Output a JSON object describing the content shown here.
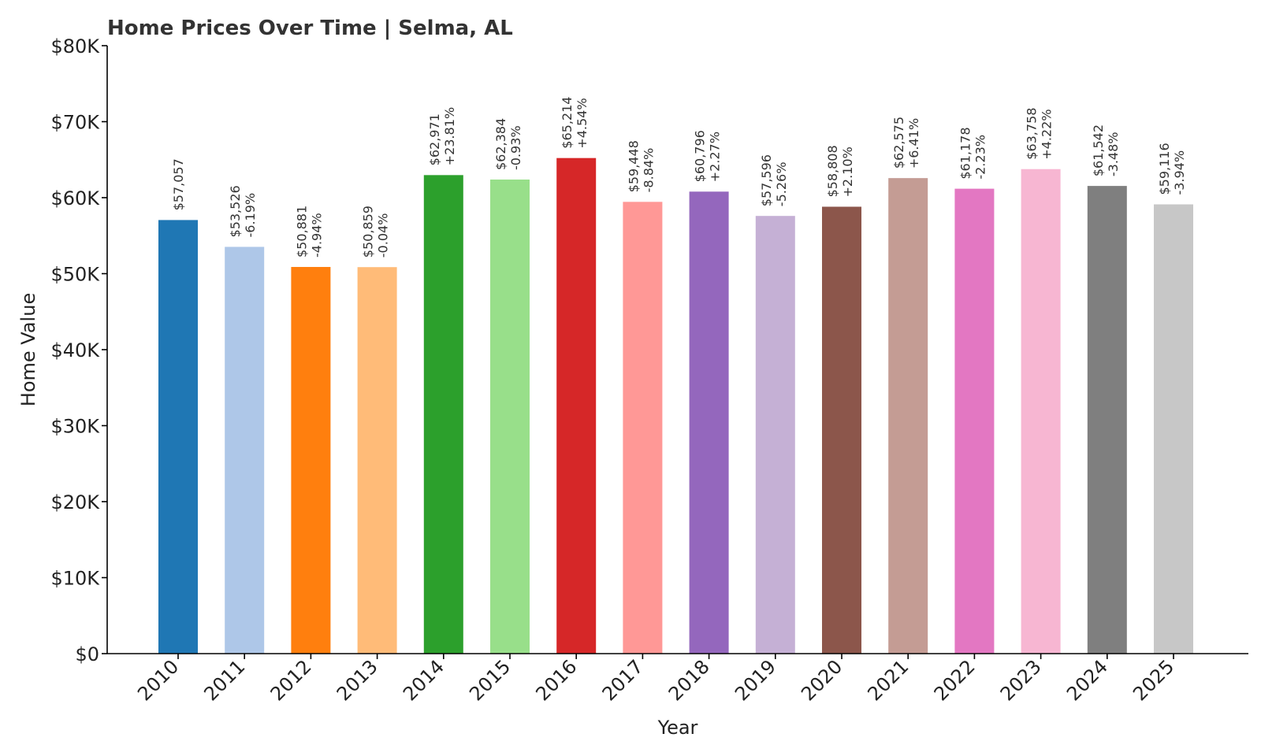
{
  "chart_data": {
    "type": "bar",
    "title": "Home Prices Over Time | Selma, AL",
    "xlabel": "Year",
    "ylabel": "Home Value",
    "ylim": [
      0,
      80000
    ],
    "ytick_values": [
      0,
      10000,
      20000,
      30000,
      40000,
      50000,
      60000,
      70000,
      80000
    ],
    "ytick_labels": [
      "$0",
      "$10K",
      "$20K",
      "$30K",
      "$40K",
      "$50K",
      "$60K",
      "$70K",
      "$80K"
    ],
    "categories": [
      "2010",
      "2011",
      "2012",
      "2013",
      "2014",
      "2015",
      "2016",
      "2017",
      "2018",
      "2019",
      "2020",
      "2021",
      "2022",
      "2023",
      "2024",
      "2025"
    ],
    "values": [
      57057,
      53526,
      50881,
      50859,
      62971,
      62384,
      65214,
      59448,
      60796,
      57596,
      58808,
      62575,
      61178,
      63758,
      61542,
      59116
    ],
    "value_labels": [
      "$57,057",
      "$53,526",
      "$50,881",
      "$50,859",
      "$62,971",
      "$62,384",
      "$65,214",
      "$59,448",
      "$60,796",
      "$57,596",
      "$58,808",
      "$62,575",
      "$61,178",
      "$63,758",
      "$61,542",
      "$59,116"
    ],
    "change_labels": [
      "",
      "-6.19%",
      "-4.94%",
      "-0.04%",
      "+23.81%",
      "-0.93%",
      "+4.54%",
      "-8.84%",
      "+2.27%",
      "-5.26%",
      "+2.10%",
      "+6.41%",
      "-2.23%",
      "+4.22%",
      "-3.48%",
      "-3.94%"
    ],
    "colors": [
      "#1f77b4",
      "#aec7e8",
      "#ff7f0e",
      "#ffbb78",
      "#2ca02c",
      "#98df8a",
      "#d62728",
      "#ff9896",
      "#9467bd",
      "#c5b0d5",
      "#8c564b",
      "#c49c94",
      "#e377c2",
      "#f7b6d2",
      "#7f7f7f",
      "#c7c7c7"
    ],
    "grid": false
  }
}
